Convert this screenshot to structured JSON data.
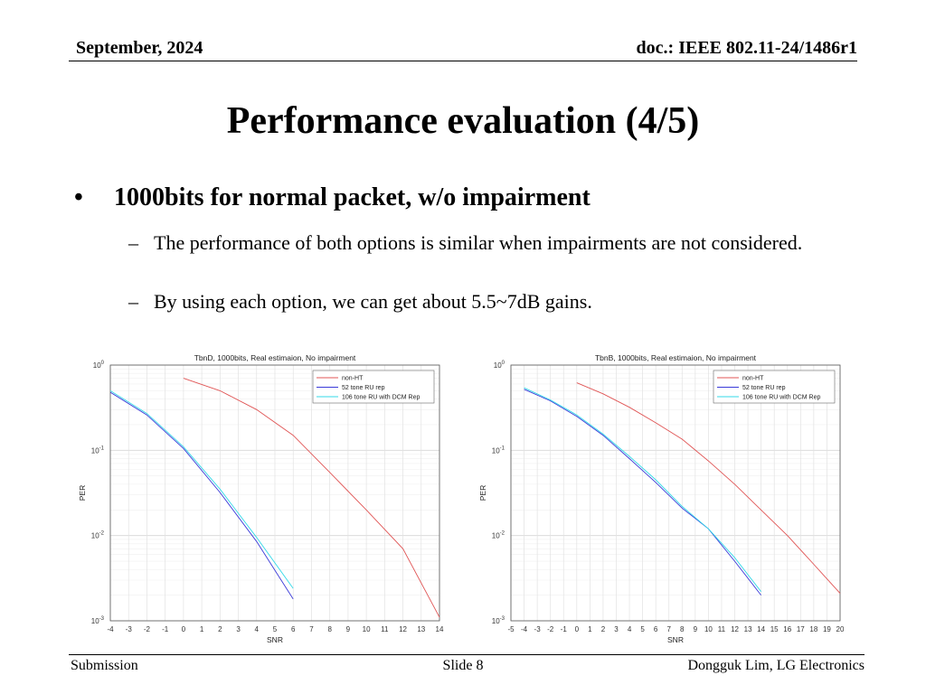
{
  "header": {
    "date": "September, 2024",
    "doc": "doc.: IEEE 802.11-24/1486r1"
  },
  "title": "Performance evaluation (4/5)",
  "bullet": {
    "symbol": "•",
    "text": "1000bits for normal packet, w/o impairment",
    "subitems": [
      "The performance of both options is similar when impairments are not considered.",
      "By using each option, we can get about 5.5~7dB gains."
    ],
    "dash": "–"
  },
  "footer": {
    "left": "Submission",
    "center": "Slide 8",
    "right": "Dongguk Lim, LG Electronics"
  },
  "chart_data": [
    {
      "type": "line",
      "title": "TbnD, 1000bits, Real estimaion, No impairment",
      "xlabel": "SNR",
      "ylabel": "PER",
      "yscale": "log",
      "xlim": [
        -4,
        14
      ],
      "ylim": [
        0.001,
        1
      ],
      "xticks": [
        -4,
        -3,
        -2,
        -1,
        0,
        1,
        2,
        3,
        4,
        5,
        6,
        7,
        8,
        9,
        10,
        11,
        12,
        13,
        14
      ],
      "yticks": [
        {
          "base": "10",
          "exp": "0"
        },
        {
          "base": "10",
          "exp": "-1"
        },
        {
          "base": "10",
          "exp": "-2"
        },
        {
          "base": "10",
          "exp": "-3"
        }
      ],
      "grid": true,
      "legend_position": "top-right",
      "series": [
        {
          "name": "non-HT",
          "color": "#e05555",
          "x": [
            0,
            2,
            4,
            6,
            8,
            10,
            12,
            14
          ],
          "y": [
            0.7,
            0.5,
            0.3,
            0.15,
            0.055,
            0.02,
            0.007,
            0.0011
          ]
        },
        {
          "name": "52 tone RU rep",
          "color": "#3a3ad8",
          "x": [
            -4,
            -2,
            0,
            2,
            4,
            6
          ],
          "y": [
            0.48,
            0.26,
            0.105,
            0.032,
            0.0085,
            0.0018
          ]
        },
        {
          "name": "106 tone RU with DCM Rep",
          "color": "#33d9e8",
          "x": [
            -4,
            -2,
            0,
            2,
            4,
            6
          ],
          "y": [
            0.5,
            0.27,
            0.11,
            0.035,
            0.0095,
            0.0024
          ]
        }
      ]
    },
    {
      "type": "line",
      "title": "TbnB, 1000bits, Real estimaion, No impairment",
      "xlabel": "SNR",
      "ylabel": "PER",
      "yscale": "log",
      "xlim": [
        -5,
        20
      ],
      "ylim": [
        0.001,
        1
      ],
      "xticks": [
        -5,
        -4,
        -3,
        -2,
        -1,
        0,
        1,
        2,
        3,
        4,
        5,
        6,
        7,
        8,
        9,
        10,
        11,
        12,
        13,
        14,
        15,
        16,
        17,
        18,
        19,
        20
      ],
      "yticks": [
        {
          "base": "10",
          "exp": "0"
        },
        {
          "base": "10",
          "exp": "-1"
        },
        {
          "base": "10",
          "exp": "-2"
        },
        {
          "base": "10",
          "exp": "-3"
        }
      ],
      "grid": true,
      "legend_position": "top-right",
      "series": [
        {
          "name": "non-HT",
          "color": "#e05555",
          "x": [
            0,
            2,
            4,
            6,
            8,
            10,
            12,
            14,
            16,
            18,
            20
          ],
          "y": [
            0.62,
            0.46,
            0.32,
            0.21,
            0.135,
            0.075,
            0.04,
            0.02,
            0.01,
            0.0046,
            0.0021
          ]
        },
        {
          "name": "52 tone RU rep",
          "color": "#3a3ad8",
          "x": [
            -4,
            -2,
            0,
            2,
            4,
            6,
            8,
            10,
            12,
            14
          ],
          "y": [
            0.52,
            0.38,
            0.25,
            0.15,
            0.08,
            0.042,
            0.021,
            0.012,
            0.005,
            0.002
          ]
        },
        {
          "name": "106 tone RU with DCM Rep",
          "color": "#33d9e8",
          "x": [
            -4,
            -2,
            0,
            2,
            4,
            6,
            8,
            10,
            12,
            14
          ],
          "y": [
            0.54,
            0.39,
            0.26,
            0.155,
            0.085,
            0.045,
            0.022,
            0.012,
            0.0055,
            0.0022
          ]
        }
      ]
    }
  ]
}
